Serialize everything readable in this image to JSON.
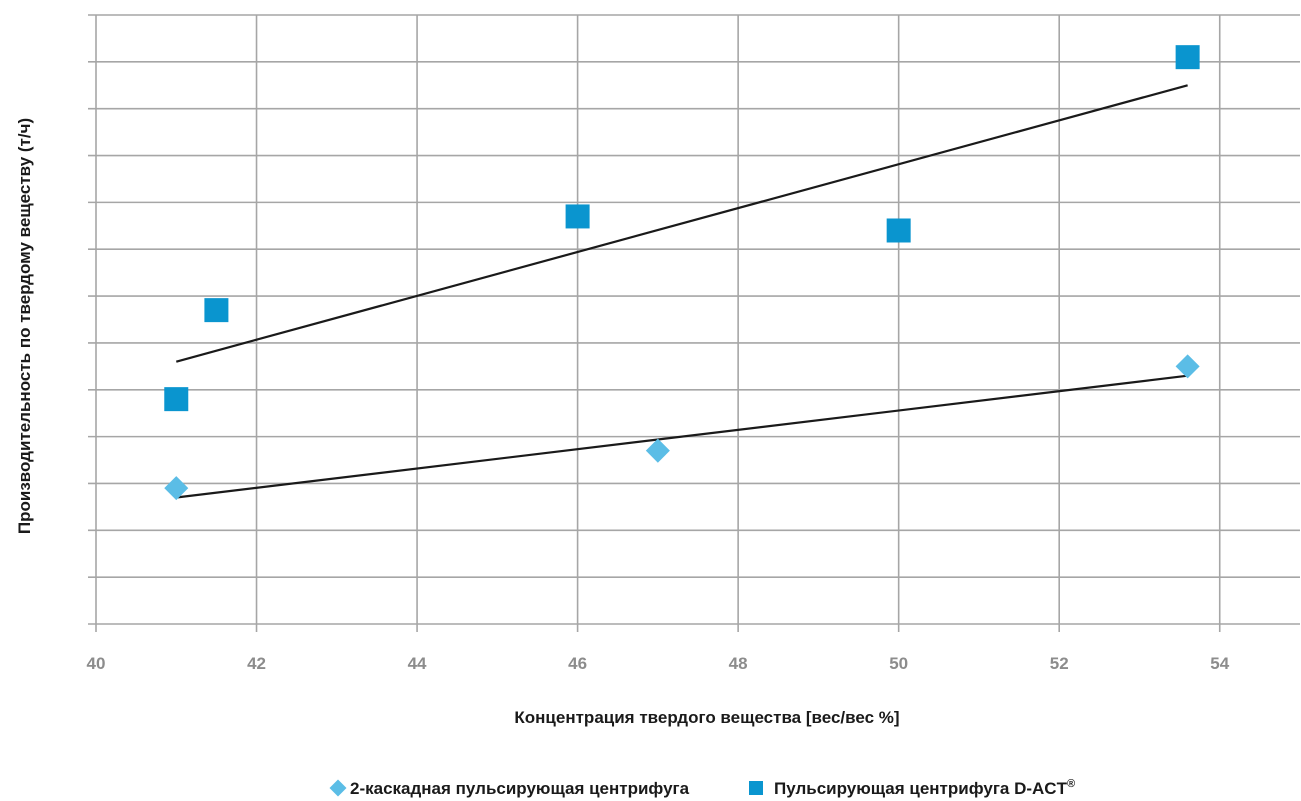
{
  "chart_data": {
    "type": "scatter",
    "xlabel": "Концентрация твердого вещества [вес/вес %]",
    "ylabel": "Производительность по твердому веществу (т/ч)",
    "xlim": [
      40,
      55
    ],
    "x_ticks": [
      "40",
      "42",
      "44",
      "46",
      "48",
      "50",
      "52",
      "54"
    ],
    "ylim": [
      0,
      13
    ],
    "y_gridlines": 13,
    "y_tick_labels_shown": false,
    "grid": true,
    "legend_position": "bottom-center",
    "series": [
      {
        "name": "2-каскадная пульсирующая центрифуга",
        "marker": "diamond",
        "color": "#5bbde6",
        "points": [
          {
            "x": 41.0,
            "y": 2.9
          },
          {
            "x": 47.0,
            "y": 3.7
          },
          {
            "x": 53.6,
            "y": 5.5
          }
        ],
        "trendline": {
          "x": [
            41.0,
            53.6
          ],
          "y": [
            2.7,
            5.3
          ]
        }
      },
      {
        "name": "Пульсирующая центрифуга D-ACT",
        "name_superscript": "®",
        "marker": "square",
        "color": "#0a95cf",
        "points": [
          {
            "x": 41.0,
            "y": 4.8
          },
          {
            "x": 41.5,
            "y": 6.7
          },
          {
            "x": 46.0,
            "y": 8.7
          },
          {
            "x": 50.0,
            "y": 8.4
          },
          {
            "x": 53.6,
            "y": 12.1
          }
        ],
        "trendline": {
          "x": [
            41.0,
            53.6
          ],
          "y": [
            5.6,
            11.5
          ]
        }
      }
    ]
  }
}
